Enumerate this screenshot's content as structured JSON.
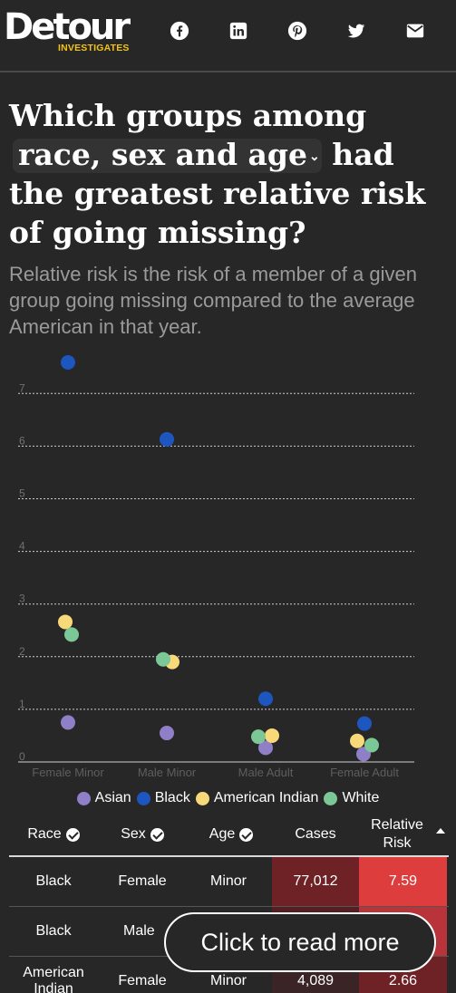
{
  "header": {
    "logo_word": "Detour",
    "logo_sub": "INVESTIGATES",
    "social": [
      "facebook-icon",
      "linkedin-icon",
      "pinterest-icon",
      "twitter-icon",
      "email-icon"
    ]
  },
  "headline": {
    "part1": "Which groups among",
    "select_value": "race, sex and age",
    "part2": "had the greatest relative risk of going missing?"
  },
  "subhead": "Relative risk is the risk of a member of a given group going missing compared to the average American in that year.",
  "colors": {
    "background": "#272727",
    "asian": "#8f7fc7",
    "black": "#1e56c0",
    "american_indian": "#f7d97a",
    "white": "#7bc796",
    "cell_dark_red": "#6e2226",
    "cell_bright_red": "#de3d3d"
  },
  "chart_data": {
    "type": "scatter",
    "categories": [
      "Female Minor",
      "Male Minor",
      "Male Adult",
      "Female Adult"
    ],
    "yticks": [
      0,
      1,
      2,
      3,
      4,
      5,
      6,
      7
    ],
    "ylim": [
      0,
      7.8
    ],
    "grid": true,
    "legend_position": "bottom",
    "series": [
      {
        "name": "Asian",
        "color": "#8f7fc7",
        "values": [
          0.75,
          0.55,
          0.27,
          0.15
        ]
      },
      {
        "name": "Black",
        "color": "#1e56c0",
        "values": [
          7.59,
          6.13,
          1.2,
          0.73
        ]
      },
      {
        "name": "American Indian",
        "color": "#f7d97a",
        "values": [
          2.66,
          1.9,
          0.5,
          0.4
        ]
      },
      {
        "name": "White",
        "color": "#7bc796",
        "values": [
          2.42,
          1.95,
          0.48,
          0.32
        ]
      }
    ]
  },
  "legend": [
    {
      "label": "Asian",
      "color": "#8f7fc7"
    },
    {
      "label": "Black",
      "color": "#1e56c0"
    },
    {
      "label": "American Indian",
      "color": "#f7d97a"
    },
    {
      "label": "White",
      "color": "#7bc796"
    }
  ],
  "table": {
    "headers": {
      "race": "Race",
      "sex": "Sex",
      "age": "Age",
      "cases": "Cases",
      "relative_risk": "Relative Risk"
    },
    "rows": [
      {
        "race": "Black",
        "sex": "Female",
        "age": "Minor",
        "cases": "77,012",
        "relative_risk": "7.59"
      },
      {
        "race": "Black",
        "sex": "Male",
        "age": "",
        "cases": "",
        "relative_risk": ""
      },
      {
        "race": "American Indian",
        "sex": "Female",
        "age": "Minor",
        "cases": "4,089",
        "relative_risk": "2.66"
      }
    ]
  },
  "read_more_label": "Click to read more"
}
